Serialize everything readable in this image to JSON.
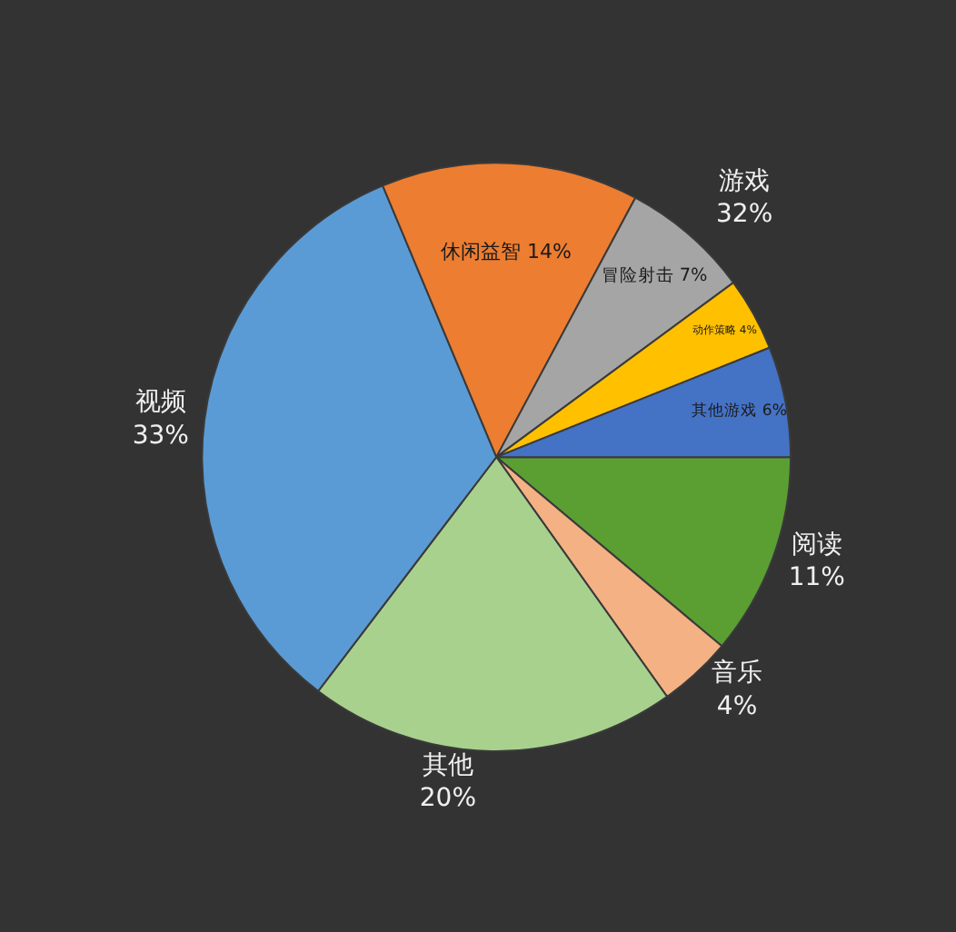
{
  "chart_data": {
    "type": "pie",
    "categories": [
      "阅读",
      "音乐",
      "其他",
      "视频",
      "休闲益智",
      "冒险射击",
      "动作策略",
      "其他游戏"
    ],
    "values": [
      11,
      4,
      20,
      33,
      14,
      7,
      4,
      6
    ],
    "value_labels": [
      "11%",
      "4%",
      "20%",
      "33%",
      "14%",
      "7%",
      "4%",
      "6%"
    ],
    "colors": [
      "#5b9f33",
      "#f4b183",
      "#a9d18e",
      "#5b9bd5",
      "#ed7d31",
      "#a5a5a5",
      "#ffc000",
      "#4472c4"
    ],
    "annotations": [
      "游戏\n32%"
    ],
    "legend": false
  }
}
